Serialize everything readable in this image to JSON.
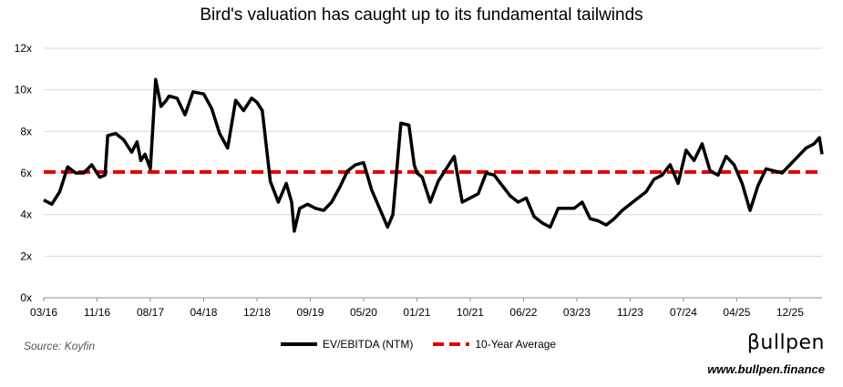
{
  "chart_data": {
    "type": "line",
    "title": "Bird's valuation has caught up to its fundamental tailwinds",
    "xlabel": "",
    "ylabel": "",
    "ylim": [
      0,
      12
    ],
    "y_ticks": [
      "0x",
      "2x",
      "4x",
      "6x",
      "8x",
      "10x",
      "12x"
    ],
    "x_ticks": [
      "03/16",
      "11/16",
      "08/17",
      "04/18",
      "12/18",
      "09/19",
      "05/20",
      "01/21",
      "10/21",
      "06/22",
      "03/23",
      "11/23",
      "07/24",
      "04/25",
      "12/25"
    ],
    "x_range": [
      0,
      14.6
    ],
    "series": [
      {
        "name": "EV/EBITDA (NTM)",
        "color": "#000000",
        "x": [
          0,
          0.15,
          0.3,
          0.45,
          0.6,
          0.75,
          0.9,
          1.05,
          1.15,
          1.2,
          1.35,
          1.5,
          1.65,
          1.75,
          1.82,
          1.9,
          2.0,
          2.1,
          2.2,
          2.3,
          2.35,
          2.5,
          2.65,
          2.8,
          3.0,
          3.15,
          3.3,
          3.45,
          3.6,
          3.75,
          3.9,
          4.0,
          4.1,
          4.25,
          4.4,
          4.55,
          4.65,
          4.7,
          4.8,
          4.95,
          5.1,
          5.25,
          5.4,
          5.55,
          5.7,
          5.85,
          6.0,
          6.15,
          6.3,
          6.45,
          6.55,
          6.7,
          6.85,
          6.95,
          7.0,
          7.1,
          7.25,
          7.4,
          7.55,
          7.7,
          7.85,
          8.0,
          8.15,
          8.3,
          8.45,
          8.6,
          8.75,
          8.9,
          9.05,
          9.2,
          9.35,
          9.5,
          9.65,
          9.8,
          9.95,
          10.1,
          10.25,
          10.4,
          10.55,
          10.7,
          10.85,
          11.0,
          11.15,
          11.3,
          11.45,
          11.6,
          11.75,
          11.9,
          12.05,
          12.2,
          12.35,
          12.5,
          12.65,
          12.8,
          12.95,
          13.1,
          13.25,
          13.4,
          13.55,
          13.7,
          13.85,
          14.0,
          14.15,
          14.3,
          14.45,
          14.55,
          14.6
        ],
        "values": [
          4.7,
          4.5,
          5.1,
          6.3,
          6.0,
          6.0,
          6.4,
          5.8,
          5.9,
          7.8,
          7.9,
          7.6,
          7.0,
          7.5,
          6.6,
          6.9,
          6.2,
          10.5,
          9.2,
          9.5,
          9.7,
          9.6,
          8.8,
          9.9,
          9.8,
          9.1,
          7.9,
          7.2,
          9.5,
          9.0,
          9.6,
          9.4,
          9.0,
          5.6,
          4.6,
          5.5,
          4.6,
          3.2,
          4.3,
          4.5,
          4.3,
          4.2,
          4.6,
          5.3,
          6.1,
          6.4,
          6.5,
          5.2,
          4.3,
          3.4,
          4.0,
          8.4,
          8.3,
          6.4,
          6.0,
          5.8,
          4.6,
          5.6,
          6.2,
          6.8,
          4.6,
          4.8,
          5.0,
          6.0,
          5.9,
          5.4,
          4.9,
          4.6,
          4.8,
          3.9,
          3.6,
          3.4,
          4.3,
          4.3,
          4.3,
          4.6,
          3.8,
          3.7,
          3.5,
          3.8,
          4.2,
          4.5,
          4.8,
          5.1,
          5.7,
          5.9,
          6.4,
          5.5,
          7.1,
          6.6,
          7.4,
          6.1,
          5.9,
          6.8,
          6.4,
          5.5,
          4.2,
          5.4,
          6.2,
          6.1,
          6.0,
          6.4,
          6.8,
          7.2,
          7.4,
          7.7,
          6.9
        ]
      },
      {
        "name": "10-Year Average",
        "color": "#e00000",
        "x": [
          0,
          14.6
        ],
        "values": [
          6.05,
          6.05
        ]
      }
    ],
    "legend": [
      "EV/EBITDA (NTM)",
      "10-Year Average"
    ],
    "legend_position": "bottom-center",
    "grid": true
  },
  "footer": {
    "source": "Source: Koyfin",
    "brand": "βullpen",
    "website": "www.bullpen.finance"
  }
}
